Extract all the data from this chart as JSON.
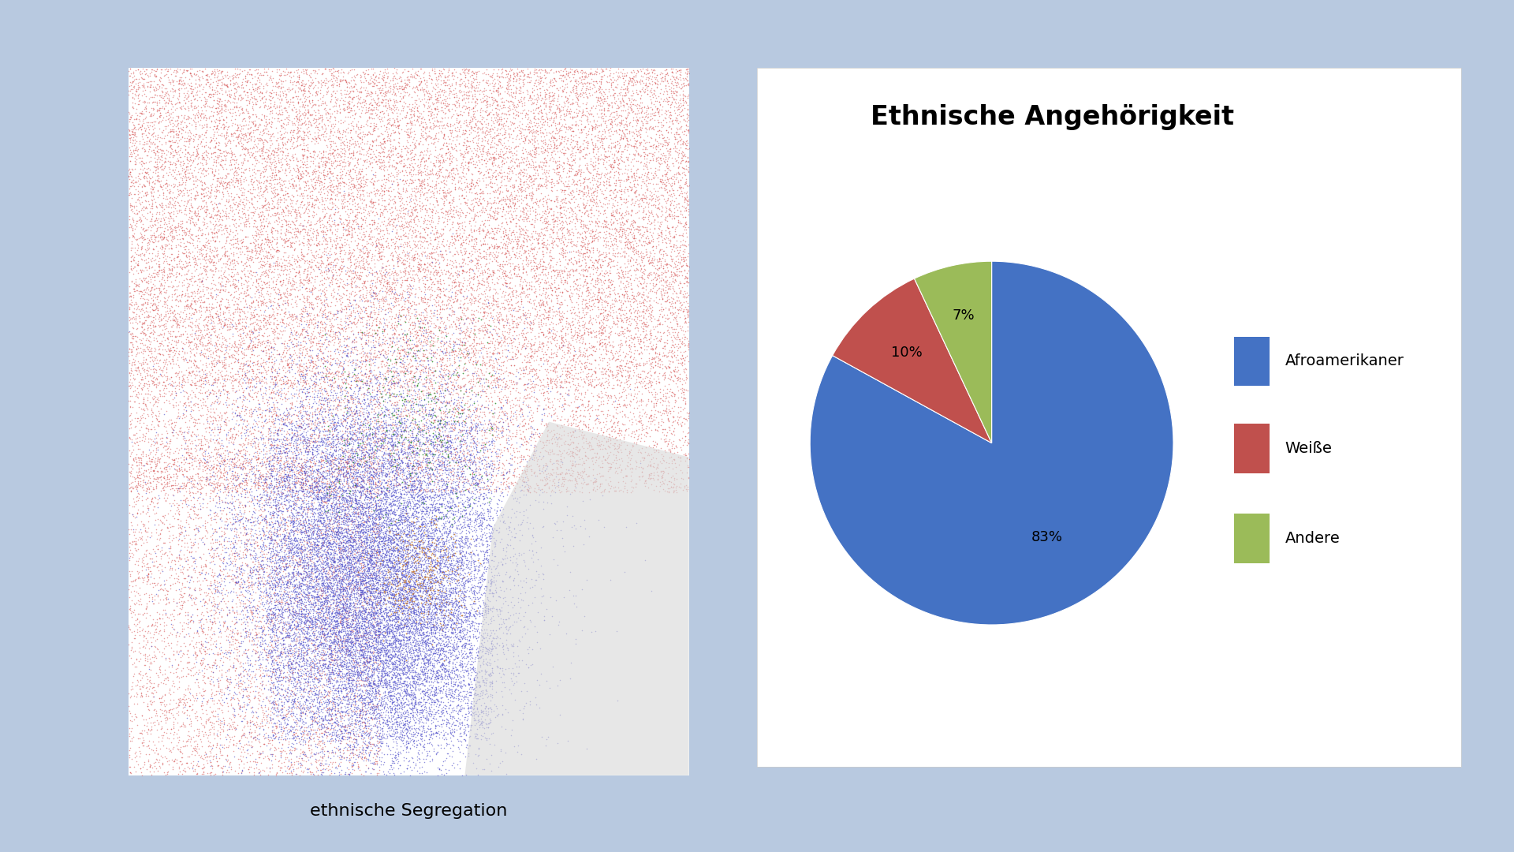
{
  "background_color": "#b8c9e0",
  "pie_title": "Ethnische Angehörigkeit",
  "pie_labels": [
    "Afroamerikaner",
    "Weiße",
    "Andere"
  ],
  "pie_values": [
    83,
    10,
    7
  ],
  "pie_colors": [
    "#4472c4",
    "#c0504d",
    "#9bbb59"
  ],
  "pie_autopct_values": [
    "83%",
    "10%",
    "7%"
  ],
  "map_caption": "ethnische Segregation",
  "legend_fontsize": 14,
  "title_fontsize": 24,
  "autopct_fontsize": 13,
  "caption_fontsize": 16
}
